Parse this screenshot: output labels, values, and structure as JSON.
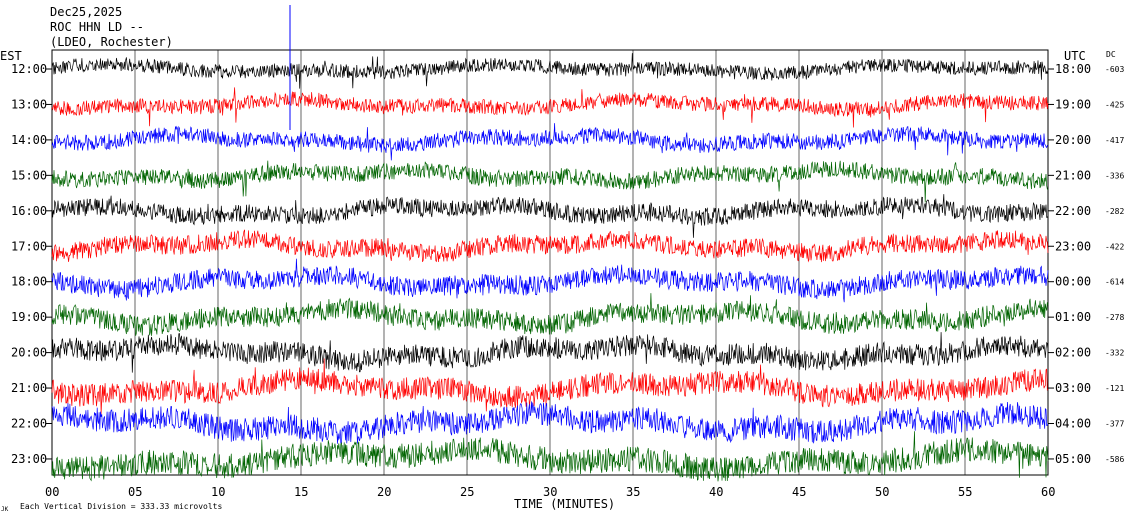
{
  "header": {
    "line1": "Dec25,2025",
    "line2": "ROC HHN LD --",
    "line3": "(LDEO, Rochester)"
  },
  "left_axis_title": "EST",
  "right_axis_title": "UTC",
  "dc_title": "DC",
  "footer": {
    "xlabel": "TIME (MINUTES)",
    "scale_note": "Each Vertical Division =  333.33 microvolts",
    "corner_mark": "JK"
  },
  "colors": {
    "black": "#000000",
    "red": "#ff0000",
    "blue": "#0000ff",
    "green": "#006400",
    "grid": "#000000"
  },
  "chart_data": {
    "type": "line",
    "title": "Dec25,2025",
    "xlabel": "TIME (MINUTES)",
    "xlim": [
      0,
      60
    ],
    "x_ticks": [
      "00",
      "05",
      "10",
      "15",
      "20",
      "25",
      "30",
      "35",
      "40",
      "45",
      "50",
      "55",
      "60"
    ],
    "grid": true,
    "gridline_minutes": [
      0,
      5,
      10,
      15,
      20,
      25,
      30,
      35,
      40,
      45,
      50,
      55,
      60
    ],
    "rows": [
      {
        "est": "12:00",
        "utc": "18:00",
        "dc": "-603",
        "color": "black"
      },
      {
        "est": "13:00",
        "utc": "19:00",
        "dc": "-425",
        "color": "red"
      },
      {
        "est": "14:00",
        "utc": "20:00",
        "dc": "-417",
        "color": "blue"
      },
      {
        "est": "15:00",
        "utc": "21:00",
        "dc": "-336",
        "color": "green"
      },
      {
        "est": "16:00",
        "utc": "22:00",
        "dc": "-282",
        "color": "black"
      },
      {
        "est": "17:00",
        "utc": "23:00",
        "dc": "-422",
        "color": "red"
      },
      {
        "est": "18:00",
        "utc": "00:00",
        "dc": "-614",
        "color": "blue"
      },
      {
        "est": "19:00",
        "utc": "01:00",
        "dc": "-278",
        "color": "green"
      },
      {
        "est": "20:00",
        "utc": "02:00",
        "dc": "-332",
        "color": "black"
      },
      {
        "est": "21:00",
        "utc": "03:00",
        "dc": "-121",
        "color": "red"
      },
      {
        "est": "22:00",
        "utc": "04:00",
        "dc": "-377",
        "color": "blue"
      },
      {
        "est": "23:00",
        "utc": "05:00",
        "dc": "-586",
        "color": "green"
      }
    ]
  }
}
